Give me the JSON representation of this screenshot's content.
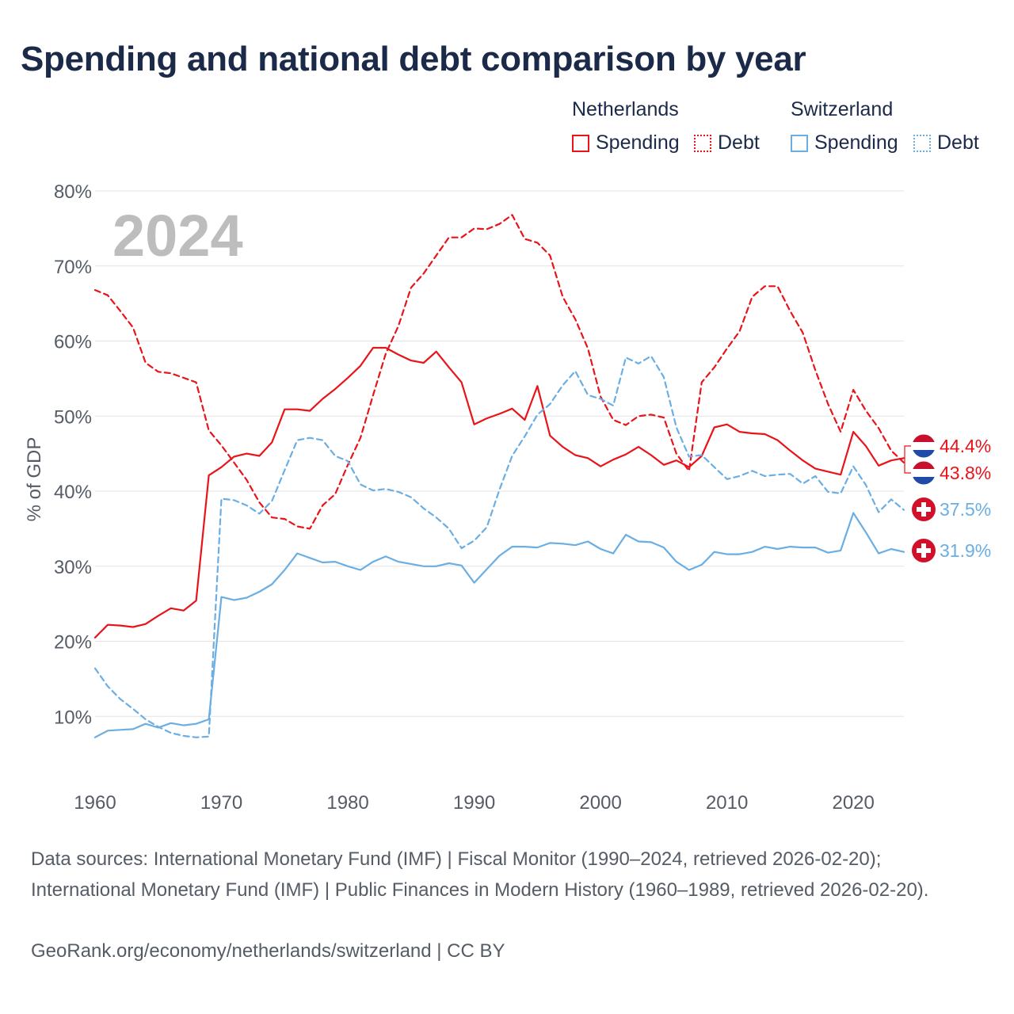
{
  "title": "Spending and national debt comparison by year",
  "legend": {
    "groups": [
      {
        "name": "Netherlands",
        "items": [
          "Spending",
          "Debt"
        ]
      },
      {
        "name": "Switzerland",
        "items": [
          "Spending",
          "Debt"
        ]
      }
    ]
  },
  "colors": {
    "netherlands": "#e8141a",
    "switzerland": "#6aaee3",
    "year_watermark": "#bdbdbd"
  },
  "footer": {
    "sources": "Data sources: International Monetary Fund (IMF) | Fiscal Monitor (1990–2024, retrieved 2026-02-20); International Monetary Fund (IMF) | Public Finances in Modern History (1960–1989, retrieved 2026-02-20).",
    "link": "GeoRank.org/economy/netherlands/switzerland | CC BY"
  },
  "chart_data": {
    "type": "line",
    "year_label": "2024",
    "ylabel": "% of GDP",
    "xlim": [
      1960,
      2024
    ],
    "ylim": [
      0,
      80
    ],
    "xticks": [
      1960,
      1970,
      1980,
      1990,
      2000,
      2010,
      2020
    ],
    "xtick_labels": [
      "1960",
      "1970",
      "1980",
      "1990",
      "2000",
      "2010",
      "2020"
    ],
    "yticks": [
      10,
      20,
      30,
      40,
      50,
      60,
      70,
      80
    ],
    "ytick_labels": [
      "10%",
      "20%",
      "30%",
      "40%",
      "50%",
      "60%",
      "70%",
      "80%"
    ],
    "x": [
      1960,
      1961,
      1962,
      1963,
      1964,
      1965,
      1966,
      1967,
      1968,
      1969,
      1970,
      1971,
      1972,
      1973,
      1974,
      1975,
      1976,
      1977,
      1978,
      1979,
      1980,
      1981,
      1982,
      1983,
      1984,
      1985,
      1986,
      1987,
      1988,
      1989,
      1990,
      1991,
      1992,
      1993,
      1994,
      1995,
      1996,
      1997,
      1998,
      1999,
      2000,
      2001,
      2002,
      2003,
      2004,
      2005,
      2006,
      2007,
      2008,
      2009,
      2010,
      2011,
      2012,
      2013,
      2014,
      2015,
      2016,
      2017,
      2018,
      2019,
      2020,
      2021,
      2022,
      2023,
      2024
    ],
    "series": [
      {
        "name": "Netherlands Spending",
        "country": "Netherlands",
        "metric": "Spending",
        "style": "solid",
        "color": "#e8141a",
        "values": [
          20.5,
          22.2,
          22.1,
          21.9,
          22.3,
          23.4,
          24.4,
          24.1,
          25.4,
          42.1,
          43.2,
          44.6,
          45,
          44.7,
          46.5,
          50.9,
          50.9,
          50.7,
          52.3,
          53.6,
          55.1,
          56.7,
          59.1,
          59.1,
          58.2,
          57.4,
          57.1,
          58.6,
          56.5,
          54.5,
          48.9,
          49.7,
          50.3,
          51.0,
          49.5,
          54.0,
          47.4,
          45.9,
          44.8,
          44.4,
          43.3,
          44.2,
          44.9,
          45.9,
          44.8,
          43.5,
          44.1,
          43.2,
          44.7,
          48.5,
          48.9,
          47.9,
          47.7,
          47.6,
          46.8,
          45.4,
          44.1,
          43.0,
          42.6,
          42.2,
          47.9,
          46.0,
          43.4,
          44.1,
          44.4
        ],
        "end_label": "44.4%"
      },
      {
        "name": "Netherlands Debt",
        "country": "Netherlands",
        "metric": "Debt",
        "style": "dashed",
        "color": "#e8141a",
        "values": [
          66.8,
          66.1,
          64.0,
          61.8,
          57.1,
          55.9,
          55.7,
          55.1,
          54.5,
          48.1,
          46.1,
          43.8,
          41.5,
          38.5,
          36.5,
          36.3,
          35.3,
          35.0,
          38.1,
          39.6,
          43.5,
          47.1,
          52.8,
          58.3,
          62.0,
          67.1,
          69.0,
          71.4,
          73.8,
          73.8,
          75.0,
          74.9,
          75.6,
          76.8,
          73.6,
          73.1,
          71.4,
          65.9,
          62.9,
          59.0,
          52.6,
          49.5,
          48.8,
          50.0,
          50.2,
          49.8,
          45.0,
          42.7,
          54.5,
          56.5,
          59.0,
          61.3,
          65.9,
          67.3,
          67.3,
          64.0,
          61.1,
          56.1,
          51.6,
          47.9,
          53.5,
          50.7,
          48.4,
          45.4,
          43.8
        ],
        "end_label": "43.8%"
      },
      {
        "name": "Switzerland Spending",
        "country": "Switzerland",
        "metric": "Spending",
        "style": "solid",
        "color": "#6aaee3",
        "values": [
          7.2,
          8.1,
          8.2,
          8.3,
          9.0,
          8.5,
          9.1,
          8.8,
          9.0,
          9.6,
          25.9,
          25.5,
          25.8,
          26.6,
          27.6,
          29.5,
          31.7,
          31.1,
          30.5,
          30.6,
          30.0,
          29.5,
          30.6,
          31.3,
          30.6,
          30.3,
          30.0,
          30.0,
          30.4,
          30.1,
          27.8,
          29.6,
          31.4,
          32.6,
          32.6,
          32.5,
          33.1,
          33.0,
          32.8,
          33.3,
          32.3,
          31.7,
          34.2,
          33.3,
          33.2,
          32.5,
          30.6,
          29.5,
          30.2,
          31.9,
          31.6,
          31.6,
          31.9,
          32.6,
          32.3,
          32.6,
          32.5,
          32.5,
          31.8,
          32.1,
          37.1,
          34.5,
          31.7,
          32.3,
          31.9
        ],
        "end_label": "31.9%"
      },
      {
        "name": "Switzerland Debt",
        "country": "Switzerland",
        "metric": "Debt",
        "style": "dashed",
        "color": "#6aaee3",
        "values": [
          16.4,
          14.0,
          12.3,
          11.0,
          9.6,
          8.6,
          7.8,
          7.4,
          7.2,
          7.3,
          39.0,
          38.8,
          38.1,
          37.0,
          38.7,
          42.8,
          46.8,
          47.1,
          46.8,
          44.7,
          44.0,
          40.9,
          40.1,
          40.3,
          39.9,
          39.2,
          37.7,
          36.5,
          35.0,
          32.4,
          33.4,
          35.2,
          40.2,
          44.7,
          47.3,
          50.2,
          51.6,
          54.1,
          56.0,
          52.8,
          52.3,
          51.4,
          57.8,
          57.0,
          58.0,
          55.2,
          48.5,
          44.6,
          44.8,
          43.2,
          41.6,
          42.0,
          42.7,
          42.0,
          42.2,
          42.3,
          41.0,
          42.0,
          39.9,
          39.7,
          43.3,
          40.8,
          37.2,
          38.9,
          37.5
        ],
        "end_label": "37.5%"
      }
    ]
  }
}
